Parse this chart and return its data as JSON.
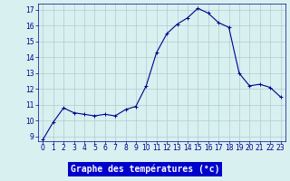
{
  "hours": [
    0,
    1,
    2,
    3,
    4,
    5,
    6,
    7,
    8,
    9,
    10,
    11,
    12,
    13,
    14,
    15,
    16,
    17,
    18,
    19,
    20,
    21,
    22,
    23
  ],
  "temperatures": [
    8.8,
    9.9,
    10.8,
    10.5,
    10.4,
    10.3,
    10.4,
    10.3,
    10.7,
    10.9,
    12.2,
    14.3,
    15.5,
    16.1,
    16.5,
    17.1,
    16.8,
    16.2,
    15.9,
    13.0,
    12.2,
    12.3,
    12.1,
    11.5
  ],
  "line_color": "#00008b",
  "marker": "+",
  "marker_size": 3,
  "bg_color": "#d9f0f0",
  "grid_color": "#aacece",
  "xlabel": "Graphe des températures (°c)",
  "xlabel_bg": "#0000cc",
  "xlabel_color": "#ffffff",
  "ylim": [
    8.7,
    17.4
  ],
  "yticks": [
    9,
    10,
    11,
    12,
    13,
    14,
    15,
    16,
    17
  ],
  "xticks": [
    0,
    1,
    2,
    3,
    4,
    5,
    6,
    7,
    8,
    9,
    10,
    11,
    12,
    13,
    14,
    15,
    16,
    17,
    18,
    19,
    20,
    21,
    22,
    23
  ],
  "tick_fontsize": 5.5,
  "label_fontsize": 7
}
